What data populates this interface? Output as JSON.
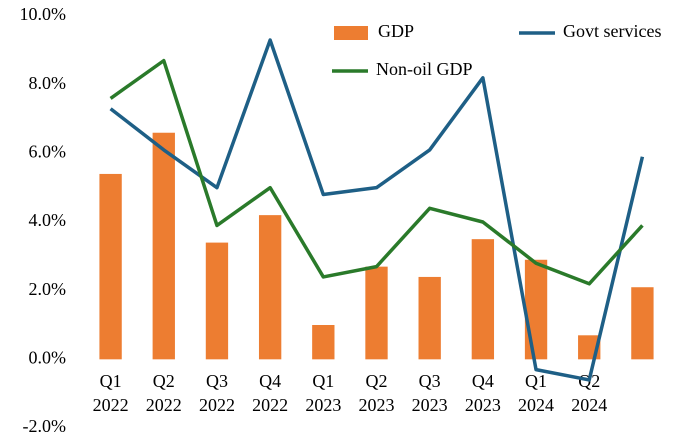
{
  "chart_data": {
    "type": "bar_line",
    "categories": [
      "Q1 2022",
      "Q2 2022",
      "Q3 2022",
      "Q4 2022",
      "Q1 2023",
      "Q2 2023",
      "Q3 2023",
      "Q4 2023",
      "Q1 2024",
      "Q2 2024",
      null
    ],
    "series": [
      {
        "name": "GDP",
        "type": "bar",
        "color": "#ed7d31",
        "values": [
          5.4,
          6.6,
          3.4,
          4.2,
          1.0,
          2.7,
          2.4,
          3.5,
          2.9,
          0.7,
          2.1
        ]
      },
      {
        "name": "Govt services",
        "type": "line",
        "color": "#1e5f86",
        "values": [
          7.3,
          6.1,
          5.0,
          9.3,
          4.8,
          5.0,
          6.1,
          8.2,
          -0.3,
          -0.6,
          5.9
        ]
      },
      {
        "name": "Non-oil GDP",
        "type": "line",
        "color": "#2a7a2a",
        "values": [
          7.6,
          8.7,
          3.9,
          5.0,
          2.4,
          2.7,
          4.4,
          4.0,
          2.8,
          2.2,
          3.9
        ]
      }
    ],
    "ylim": [
      -2,
      10
    ],
    "yticks": [
      {
        "value": -2,
        "label": "-2.0%"
      },
      {
        "value": 0,
        "label": "0.0%"
      },
      {
        "value": 2,
        "label": "2.0%"
      },
      {
        "value": 4,
        "label": "4.0%"
      },
      {
        "value": 6,
        "label": "6.0%"
      },
      {
        "value": 8,
        "label": "8.0%"
      },
      {
        "value": 10,
        "label": "10.0%"
      }
    ],
    "grid": false
  }
}
